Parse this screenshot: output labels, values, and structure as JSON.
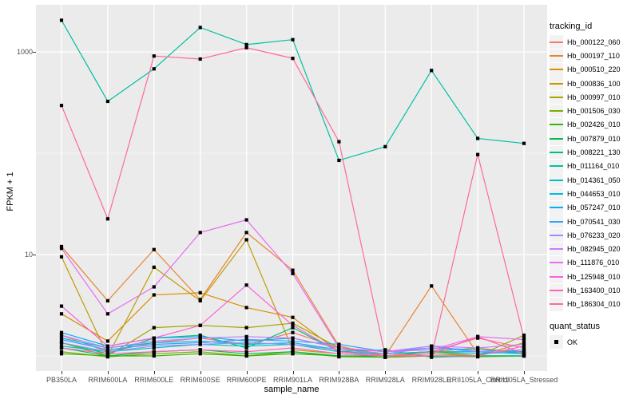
{
  "figure": {
    "background": "#FFFFFF",
    "panel_background": "#EBEBEB",
    "grid_color": "#FFFFFF",
    "axis_text_color": "#4D4D4D",
    "point_color": "#000000",
    "legend_key_background": "#F2F2F2"
  },
  "legend": {
    "tracking_title": "tracking_id",
    "quant_title": "quant_status",
    "quant_items": [
      {
        "label": "OK"
      }
    ]
  },
  "chart_data": {
    "type": "line",
    "title": "",
    "x_label": "sample_name",
    "y_label": "FPKM + 1",
    "y_scale": "log10",
    "y_major_ticks": [
      1000,
      10
    ],
    "y_minor_gridlines": [
      100,
      1
    ],
    "y_range_approx": [
      0.7,
      3000
    ],
    "grid": "on",
    "legend_position": "right",
    "point_shape": "filled-black-square (quant_status = OK)",
    "categories": [
      "PB350LA",
      "RRIM600LA",
      "RRIM600LE",
      "RRIM600SE",
      "RRIM600PE",
      "RRIM901LA",
      "RRIM928BA",
      "RRIM928LA",
      "RRIM928LE",
      "RRII105LA_Control",
      "RRII105LA_Stressed"
    ],
    "series": [
      {
        "name": "Hb_000122_060",
        "color": "#F8766D",
        "values": [
          1.6,
          1.1,
          1.35,
          1.5,
          1.3,
          1.7,
          1.2,
          1.05,
          1.1,
          1.5,
          1.2
        ]
      },
      {
        "name": "Hb_000197_110",
        "color": "#EA8331",
        "values": [
          12,
          3.5,
          11.2,
          3.6,
          16.5,
          7.0,
          1.25,
          1.0,
          4.9,
          1.05,
          1.15
        ]
      },
      {
        "name": "Hb_000510_220",
        "color": "#D89000",
        "values": [
          2.6,
          1.4,
          4.0,
          4.2,
          3.0,
          2.4,
          1.1,
          1.0,
          1.1,
          1.2,
          1.05
        ]
      },
      {
        "name": "Hb_000836_100",
        "color": "#C09B00",
        "values": [
          9.5,
          1.0,
          7.5,
          3.5,
          14,
          1.15,
          1.05,
          1.0,
          1.1,
          1.0,
          1.35
        ]
      },
      {
        "name": "Hb_000997_010",
        "color": "#A3A500",
        "values": [
          1.35,
          1.0,
          1.9,
          2.0,
          1.9,
          2.1,
          1.2,
          1.0,
          1.05,
          1.0,
          1.6
        ]
      },
      {
        "name": "Hb_001506_030",
        "color": "#7CAE00",
        "values": [
          1.1,
          0.98,
          1.05,
          1.1,
          1.0,
          1.1,
          0.98,
          0.97,
          1.0,
          0.98,
          1.0
        ]
      },
      {
        "name": "Hb_002426_010",
        "color": "#39B600",
        "values": [
          1.05,
          1.0,
          1.0,
          1.05,
          1.0,
          1.05,
          1.0,
          0.97,
          1.0,
          1.0,
          1.0
        ]
      },
      {
        "name": "Hb_007879_010",
        "color": "#00BB4E",
        "values": [
          1.2,
          1.0,
          1.1,
          1.15,
          1.05,
          1.1,
          1.0,
          1.0,
          1.0,
          1.0,
          1.0
        ]
      },
      {
        "name": "Hb_008221_130",
        "color": "#00BF7D",
        "values": [
          1.35,
          1.05,
          1.5,
          1.6,
          1.2,
          1.9,
          1.1,
          1.15,
          0.97,
          1.0,
          1.0
        ]
      },
      {
        "name": "Hb_011164_010",
        "color": "#00C1A3",
        "values": [
          2050,
          325,
          680,
          1740,
          1180,
          1320,
          85,
          116,
          655,
          140,
          125
        ]
      },
      {
        "name": "Hb_014361_050",
        "color": "#00BFC4",
        "values": [
          1.25,
          1.1,
          1.2,
          1.3,
          1.25,
          1.3,
          1.1,
          1.05,
          1.1,
          1.05,
          1.1
        ]
      },
      {
        "name": "Hb_044653_010",
        "color": "#00BADE",
        "values": [
          1.5,
          1.2,
          1.35,
          1.4,
          1.3,
          1.35,
          1.15,
          1.05,
          1.1,
          1.1,
          1.05
        ]
      },
      {
        "name": "Hb_057247_010",
        "color": "#00B0F6",
        "values": [
          1.7,
          1.25,
          1.5,
          1.55,
          1.4,
          1.5,
          1.2,
          1.1,
          1.2,
          1.15,
          1.1
        ]
      },
      {
        "name": "Hb_070541_030",
        "color": "#35A2FF",
        "values": [
          1.45,
          1.15,
          1.3,
          1.35,
          1.45,
          1.4,
          1.3,
          1.1,
          1.25,
          1.1,
          1.05
        ]
      },
      {
        "name": "Hb_076233_020",
        "color": "#9590FF",
        "values": [
          1.35,
          1.1,
          1.25,
          1.3,
          1.35,
          1.3,
          1.15,
          1.05,
          1.2,
          1.1,
          1.15
        ]
      },
      {
        "name": "Hb_082945_020",
        "color": "#C77CFF",
        "values": [
          1.6,
          1.2,
          1.4,
          1.5,
          1.55,
          1.5,
          1.2,
          1.1,
          1.25,
          1.2,
          1.3
        ]
      },
      {
        "name": "Hb_111876_010",
        "color": "#E76BF3",
        "values": [
          11.5,
          2.6,
          4.8,
          16.5,
          22,
          6.5,
          1.2,
          1.1,
          1.15,
          1.55,
          1.45
        ]
      },
      {
        "name": "Hb_125948_010",
        "color": "#FA62DB",
        "values": [
          3.1,
          1.25,
          1.5,
          2.0,
          5.0,
          2.0,
          1.1,
          1.0,
          1.0,
          1.0,
          1.25
        ]
      },
      {
        "name": "Hb_163400_010",
        "color": "#FF62BC",
        "values": [
          1.2,
          1.05,
          1.1,
          1.15,
          1.1,
          1.2,
          1.05,
          1.0,
          1.05,
          1.55,
          1.05
        ]
      },
      {
        "name": "Hb_186304_010",
        "color": "#FF6A98",
        "values": [
          296,
          22.5,
          910,
          850,
          1100,
          863,
          130,
          1.0,
          1.0,
          97,
          1.5
        ]
      }
    ]
  }
}
